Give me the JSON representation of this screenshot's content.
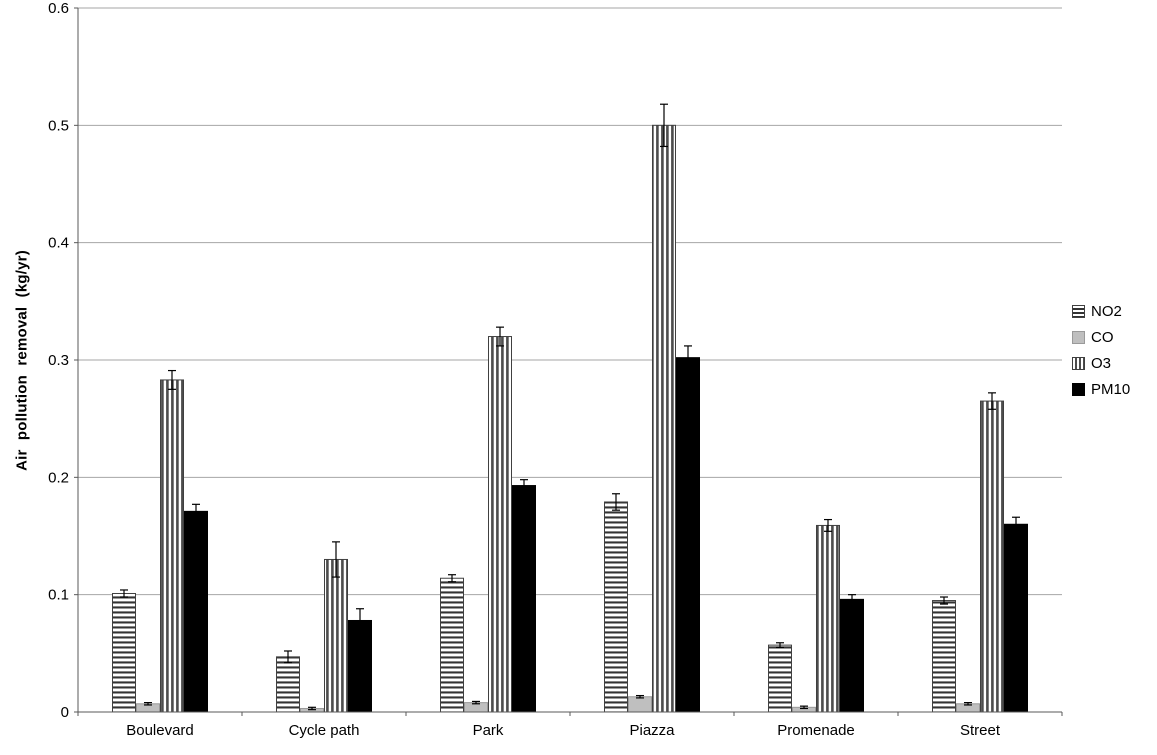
{
  "chart_data": {
    "type": "bar",
    "title": "",
    "xlabel": "",
    "ylabel": "Air pollution removal (kg/yr)",
    "ylim": [
      0,
      0.6
    ],
    "yticks": [
      0,
      0.1,
      0.2,
      0.3,
      0.4,
      0.5,
      0.6
    ],
    "grid": true,
    "legend_position": "right",
    "categories": [
      "Boulevard",
      "Cycle path",
      "Park",
      "Piazza",
      "Promenade",
      "Street"
    ],
    "series": [
      {
        "name": "NO2",
        "style": "horizontal-stripes",
        "values": [
          0.101,
          0.047,
          0.114,
          0.179,
          0.057,
          0.095
        ],
        "errors": [
          0.003,
          0.005,
          0.003,
          0.007,
          0.002,
          0.003
        ]
      },
      {
        "name": "CO",
        "style": "solid-lightgray",
        "values": [
          0.007,
          0.003,
          0.008,
          0.013,
          0.004,
          0.007
        ],
        "errors": [
          0.001,
          0.001,
          0.001,
          0.001,
          0.001,
          0.001
        ]
      },
      {
        "name": "O3",
        "style": "vertical-stripes",
        "values": [
          0.283,
          0.13,
          0.32,
          0.5,
          0.159,
          0.265
        ],
        "errors": [
          0.008,
          0.015,
          0.008,
          0.018,
          0.005,
          0.007
        ]
      },
      {
        "name": "PM10",
        "style": "solid-black",
        "values": [
          0.171,
          0.078,
          0.193,
          0.302,
          0.096,
          0.16
        ],
        "errors": [
          0.006,
          0.01,
          0.005,
          0.01,
          0.004,
          0.006
        ]
      }
    ],
    "colors": {
      "stripe_dark": "#333333",
      "lightgray": "#bfbfbf",
      "black": "#000000",
      "grid": "#a6a6a6",
      "axis": "#595959"
    }
  }
}
